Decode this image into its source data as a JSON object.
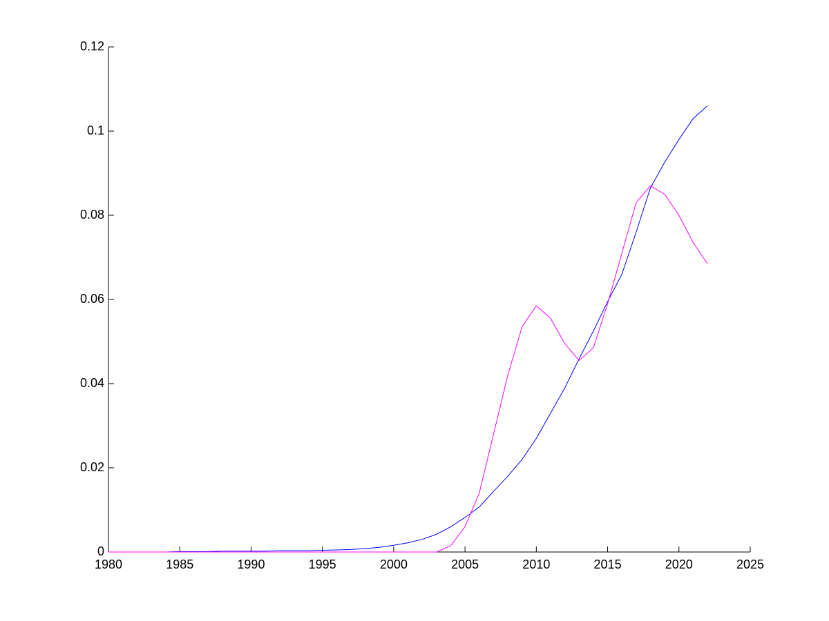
{
  "chart_data": {
    "type": "line",
    "x": [
      1980,
      1981,
      1982,
      1983,
      1984,
      1985,
      1986,
      1987,
      1988,
      1989,
      1990,
      1991,
      1992,
      1993,
      1994,
      1995,
      1996,
      1997,
      1998,
      1999,
      2000,
      2001,
      2002,
      2003,
      2004,
      2005,
      2006,
      2007,
      2008,
      2009,
      2010,
      2011,
      2012,
      2013,
      2014,
      2015,
      2016,
      2017,
      2018,
      2019,
      2020,
      2021,
      2022
    ],
    "series": [
      {
        "color": "#0000ff",
        "values": [
          0,
          0,
          0,
          0,
          0,
          0.0001,
          0.0001,
          0.0001,
          0.0002,
          0.0002,
          0.0002,
          0.0002,
          0.0003,
          0.0003,
          0.0003,
          0.0004,
          0.0005,
          0.0006,
          0.0008,
          0.0011,
          0.0016,
          0.0022,
          0.003,
          0.0042,
          0.006,
          0.0082,
          0.0107,
          0.0144,
          0.018,
          0.022,
          0.027,
          0.033,
          0.039,
          0.0459,
          0.0525,
          0.0595,
          0.066,
          0.076,
          0.0865,
          0.0926,
          0.098,
          0.103,
          0.106
        ]
      },
      {
        "color": "#ff00ff",
        "values": [
          0,
          0,
          0,
          0,
          0,
          0,
          0,
          0,
          0,
          0,
          0,
          0,
          0,
          0,
          0,
          0,
          0,
          0,
          0,
          0,
          0,
          0,
          0,
          0,
          0.0015,
          0.006,
          0.014,
          0.028,
          0.042,
          0.0535,
          0.0585,
          0.0555,
          0.0495,
          0.0455,
          0.0485,
          0.059,
          0.071,
          0.083,
          0.087,
          0.085,
          0.08,
          0.0735,
          0.0685
        ]
      }
    ],
    "xlim": [
      1980,
      2025
    ],
    "xticks": [
      1980,
      1985,
      1990,
      1995,
      2000,
      2005,
      2010,
      2015,
      2020,
      2025
    ],
    "ylim": [
      0,
      0.12
    ],
    "yticks": [
      0,
      0.02,
      0.04,
      0.06,
      0.08,
      0.1,
      0.12
    ],
    "grid": false
  }
}
